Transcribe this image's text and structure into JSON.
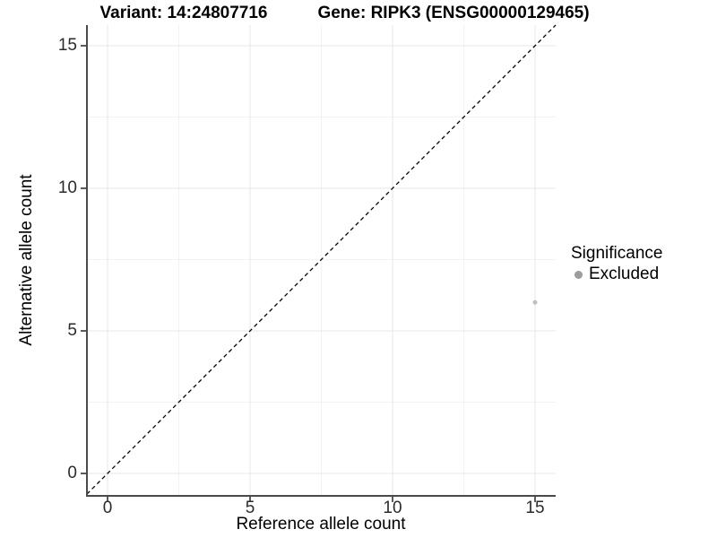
{
  "chart_data": {
    "type": "scatter",
    "titles": [
      "Variant: 14:24807716",
      "Gene: RIPK3 (ENSG00000129465)"
    ],
    "xlabel": "Reference allele count",
    "ylabel": "Alternative allele count",
    "xlim": [
      -0.75,
      15.75
    ],
    "ylim": [
      -0.75,
      15.75
    ],
    "x_ticks": [
      0,
      5,
      10,
      15
    ],
    "y_ticks": [
      0,
      5,
      10,
      15
    ],
    "x_minor": [
      2.5,
      7.5,
      12.5
    ],
    "y_minor": [
      2.5,
      7.5,
      12.5
    ],
    "grid": {
      "major": true,
      "minor": true
    },
    "reference_line": {
      "kind": "identity y=x",
      "style": "dashed",
      "color": "#000000"
    },
    "series": [
      {
        "name": "Excluded",
        "color": "#bfbfbf",
        "point_radius": 2.5,
        "points": [
          [
            15,
            6
          ]
        ]
      }
    ],
    "legend": {
      "title": "Significance",
      "position": "right",
      "entries": [
        {
          "label": "Excluded",
          "color": "#9c9c9c"
        }
      ]
    }
  },
  "colors": {
    "background": "#ffffff",
    "axis": "#4a4a4a",
    "grid_major": "#e7e7e7",
    "grid_minor": "#f2f2f2",
    "tick_label": "#2b2b2b",
    "title": "#000000"
  }
}
